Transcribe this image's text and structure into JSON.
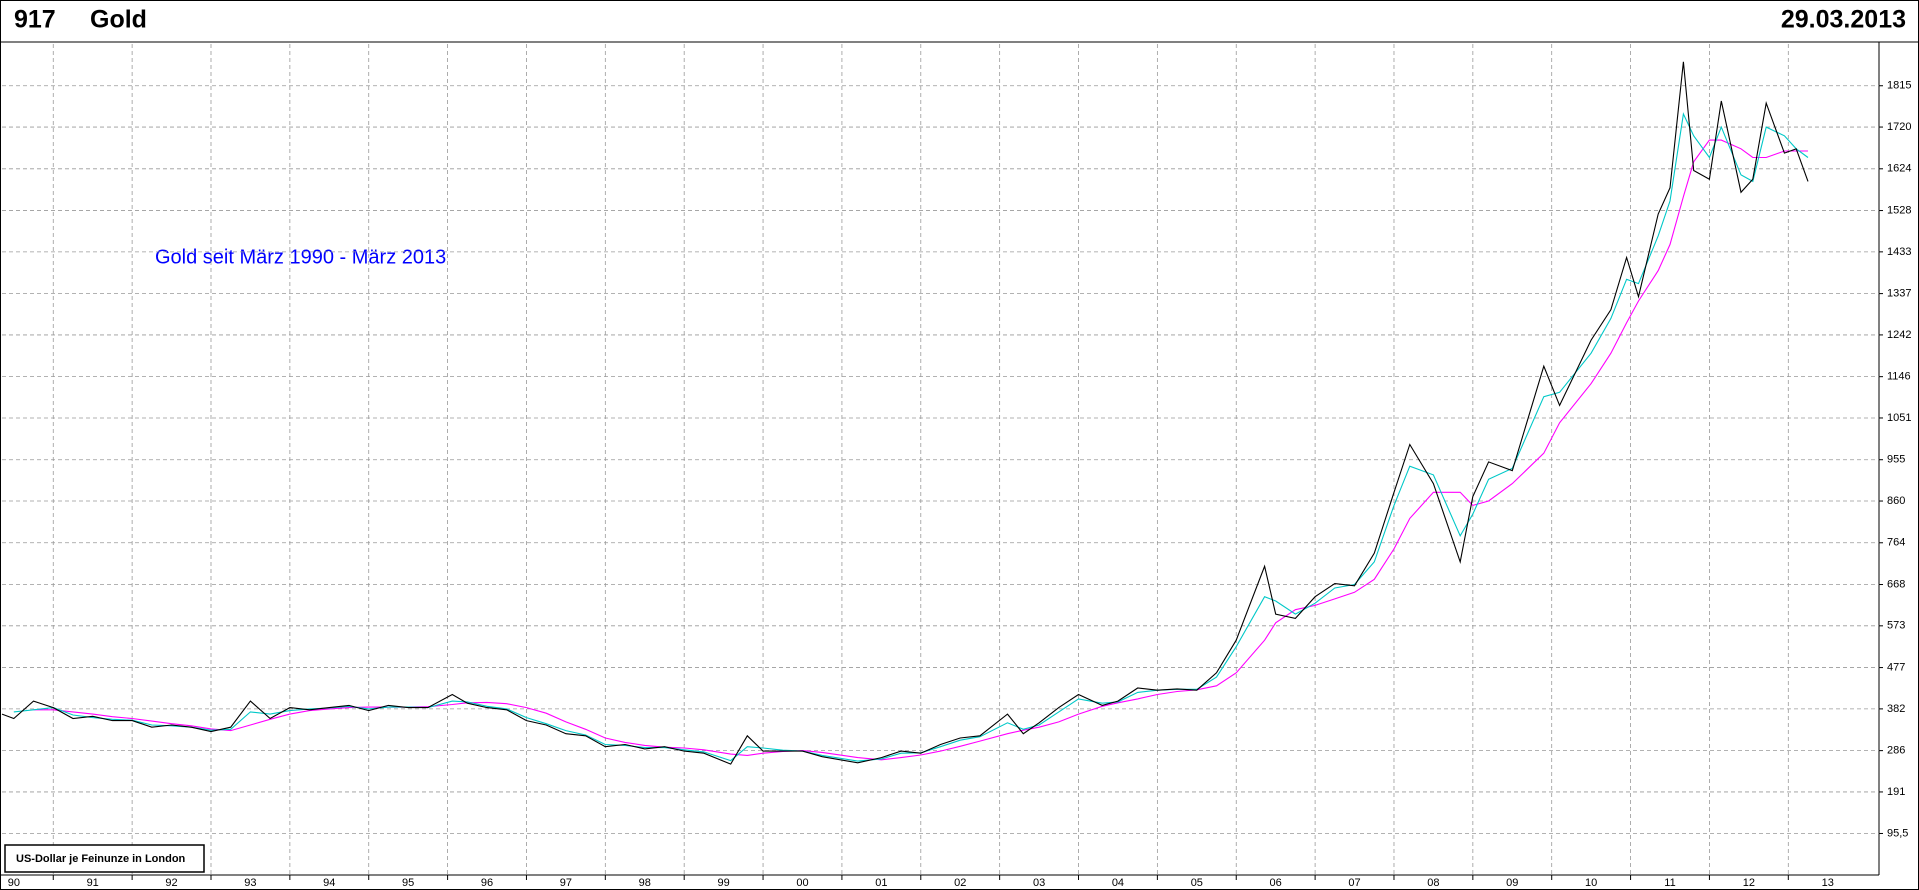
{
  "chart_data": {
    "type": "line",
    "code": "917",
    "title": "Gold",
    "date": "29.03.2013",
    "annotation": "Gold seit März 1990 - März 2013",
    "unit_label": "US-Dollar je Feinunze in London",
    "x": [
      1990.35,
      1990.5,
      1990.75,
      1991.0,
      1991.25,
      1991.5,
      1991.75,
      1992.0,
      1992.25,
      1992.5,
      1992.75,
      1993.0,
      1993.25,
      1993.5,
      1993.75,
      1994.0,
      1994.25,
      1994.5,
      1994.75,
      1995.0,
      1995.25,
      1995.5,
      1995.75,
      1996.06,
      1996.25,
      1996.5,
      1996.75,
      1997.0,
      1997.25,
      1997.5,
      1997.75,
      1998.0,
      1998.25,
      1998.5,
      1998.75,
      1999.0,
      1999.25,
      1999.59,
      1999.8,
      2000.0,
      2000.25,
      2000.5,
      2000.75,
      2001.2,
      2001.5,
      2001.75,
      2002.0,
      2002.25,
      2002.5,
      2002.75,
      2003.1,
      2003.3,
      2003.5,
      2003.75,
      2004.0,
      2004.3,
      2004.5,
      2004.75,
      2005.0,
      2005.25,
      2005.5,
      2005.75,
      2006.0,
      2006.36,
      2006.5,
      2006.75,
      2007.0,
      2007.25,
      2007.5,
      2007.75,
      2008.0,
      2008.2,
      2008.5,
      2008.84,
      2009.0,
      2009.2,
      2009.5,
      2009.9,
      2010.1,
      2010.5,
      2010.75,
      2010.95,
      2011.1,
      2011.35,
      2011.5,
      2011.67,
      2011.8,
      2012.0,
      2012.15,
      2012.4,
      2012.55,
      2012.72,
      2012.95,
      2013.1,
      2013.25
    ],
    "series": [
      {
        "color": "#000000",
        "values": [
          370,
          360,
          400,
          385,
          360,
          365,
          355,
          355,
          340,
          345,
          340,
          330,
          340,
          400,
          360,
          385,
          380,
          385,
          390,
          378,
          390,
          385,
          385,
          415,
          395,
          385,
          380,
          355,
          345,
          325,
          320,
          295,
          300,
          290,
          295,
          285,
          280,
          255,
          320,
          285,
          285,
          285,
          272,
          258,
          270,
          285,
          280,
          300,
          315,
          320,
          370,
          325,
          350,
          385,
          415,
          390,
          400,
          430,
          425,
          428,
          425,
          465,
          540,
          710,
          600,
          590,
          640,
          670,
          665,
          740,
          880,
          990,
          900,
          720,
          870,
          950,
          930,
          1170,
          1080,
          1230,
          1300,
          1420,
          1330,
          1520,
          1580,
          1870,
          1620,
          1600,
          1780,
          1570,
          1600,
          1775,
          1660,
          1670,
          1595
        ]
      },
      {
        "color": "#00c8c8",
        "values": [
          null,
          375,
          380,
          385,
          368,
          362,
          358,
          356,
          345,
          343,
          340,
          333,
          335,
          375,
          370,
          378,
          382,
          384,
          388,
          382,
          386,
          386,
          385,
          400,
          398,
          388,
          382,
          362,
          348,
          332,
          322,
          300,
          298,
          293,
          293,
          288,
          283,
          263,
          295,
          292,
          287,
          285,
          275,
          262,
          267,
          280,
          281,
          295,
          310,
          318,
          350,
          335,
          345,
          375,
          405,
          395,
          398,
          420,
          425,
          427,
          427,
          455,
          525,
          640,
          630,
          600,
          625,
          660,
          668,
          720,
          850,
          940,
          920,
          780,
          830,
          910,
          935,
          1100,
          1110,
          1200,
          1280,
          1370,
          1360,
          1470,
          1550,
          1750,
          1700,
          1650,
          1720,
          1610,
          1595,
          1720,
          1700,
          1670,
          1650
        ]
      },
      {
        "color": "#ff00ff",
        "values": [
          null,
          null,
          380,
          380,
          375,
          370,
          364,
          360,
          354,
          348,
          343,
          336,
          332,
          345,
          358,
          370,
          378,
          382,
          385,
          386,
          386,
          386,
          387,
          392,
          396,
          397,
          394,
          385,
          372,
          352,
          335,
          315,
          305,
          298,
          294,
          292,
          288,
          278,
          275,
          280,
          284,
          286,
          282,
          270,
          265,
          270,
          276,
          285,
          296,
          308,
          325,
          333,
          340,
          352,
          370,
          388,
          396,
          405,
          415,
          422,
          426,
          435,
          465,
          540,
          580,
          610,
          620,
          635,
          650,
          680,
          750,
          820,
          880,
          880,
          850,
          860,
          900,
          970,
          1040,
          1130,
          1200,
          1270,
          1320,
          1390,
          1450,
          1560,
          1640,
          1690,
          1690,
          1670,
          1650,
          1650,
          1665,
          1665,
          1665
        ]
      }
    ],
    "xlim": [
      1990.35,
      2014.15
    ],
    "xticks": [
      {
        "value": 1990,
        "label": "90"
      },
      {
        "value": 1991,
        "label": "91"
      },
      {
        "value": 1992,
        "label": "92"
      },
      {
        "value": 1993,
        "label": "93"
      },
      {
        "value": 1994,
        "label": "94"
      },
      {
        "value": 1995,
        "label": "95"
      },
      {
        "value": 1996,
        "label": "96"
      },
      {
        "value": 1997,
        "label": "97"
      },
      {
        "value": 1998,
        "label": "98"
      },
      {
        "value": 1999,
        "label": "99"
      },
      {
        "value": 2000,
        "label": "00"
      },
      {
        "value": 2001,
        "label": "01"
      },
      {
        "value": 2002,
        "label": "02"
      },
      {
        "value": 2003,
        "label": "03"
      },
      {
        "value": 2004,
        "label": "04"
      },
      {
        "value": 2005,
        "label": "05"
      },
      {
        "value": 2006,
        "label": "06"
      },
      {
        "value": 2007,
        "label": "07"
      },
      {
        "value": 2008,
        "label": "08"
      },
      {
        "value": 2009,
        "label": "09"
      },
      {
        "value": 2010,
        "label": "10"
      },
      {
        "value": 2011,
        "label": "11"
      },
      {
        "value": 2012,
        "label": "12"
      },
      {
        "value": 2013,
        "label": "13"
      }
    ],
    "ylim": [
      0,
      1911
    ],
    "yticks": [
      {
        "value": 95.5,
        "label": "95,5"
      },
      191,
      286,
      382,
      477,
      573,
      668,
      764,
      860,
      955,
      1051,
      1146,
      1242,
      1337,
      1433,
      1528,
      1624,
      1720,
      1815
    ],
    "grid": true
  }
}
